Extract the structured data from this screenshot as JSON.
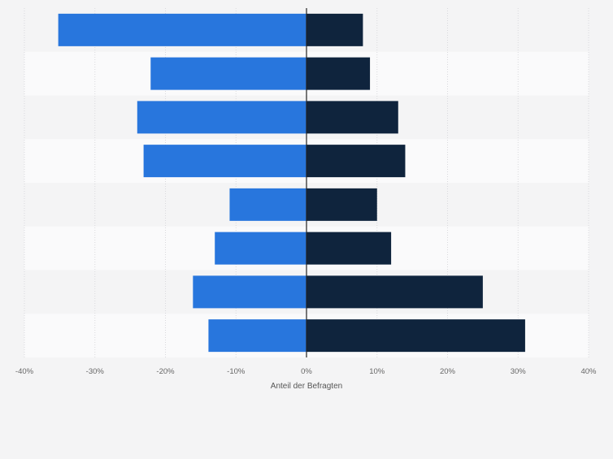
{
  "chart_data": {
    "type": "bar",
    "orientation": "horizontal",
    "diverging": true,
    "categories": [
      "",
      "",
      "",
      "",
      "",
      "",
      "",
      ""
    ],
    "series": [
      {
        "color": "#2876dd",
        "values": [
          -35.2,
          -22.1,
          -24.0,
          -23.1,
          -10.9,
          -13.0,
          -16.1,
          -13.9
        ]
      },
      {
        "color": "#0f243d",
        "values": [
          8.0,
          9.0,
          13.0,
          14.0,
          10.0,
          12.0,
          25.0,
          31.0
        ]
      }
    ],
    "xlabel": "Anteil der Befragten",
    "ylabel": "",
    "xlim": [
      -40,
      40
    ],
    "xticks": [
      -40,
      -30,
      -20,
      -10,
      0,
      10,
      20,
      30,
      40
    ],
    "xtick_labels": [
      "-40%",
      "-30%",
      "-20%",
      "-10%",
      "0%",
      "10%",
      "20%",
      "30%",
      "40%"
    ],
    "grid": true,
    "legend": "none"
  }
}
